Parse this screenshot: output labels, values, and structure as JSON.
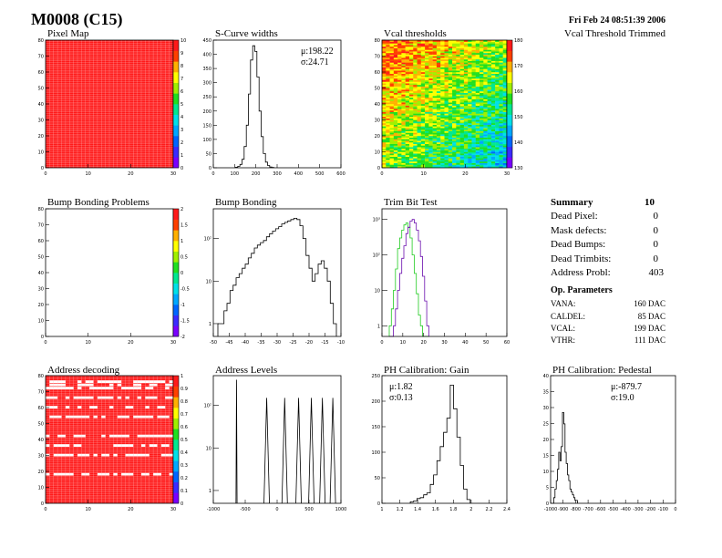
{
  "header": {
    "title": "M0008 (C15)",
    "timestamp": "Fri Feb 24 08:51:39 2006",
    "trimmed_label": "Vcal Threshold Trimmed"
  },
  "colors": {
    "red": "#ff1a1a",
    "grid": "#ffffff",
    "purple": "#6a0dad",
    "green": "#22cc22",
    "palette": [
      "#7a00ff",
      "#3b2bff",
      "#0066ff",
      "#00a8ff",
      "#00e0e8",
      "#00e890",
      "#20e020",
      "#a0f000",
      "#ffff00",
      "#ffb000",
      "#ff4000",
      "#ff1a1a"
    ]
  },
  "chart_data": [
    {
      "id": "pixel_map",
      "type": "heatmap",
      "title": "Pixel Map",
      "xlim": [
        0,
        32
      ],
      "ylim": [
        0,
        80
      ],
      "xticks": [
        "0",
        "10",
        "20",
        "30"
      ],
      "yticks": [
        "0",
        "10",
        "20",
        "30",
        "40",
        "50",
        "60",
        "70",
        "80"
      ],
      "zlim": [
        0,
        10
      ],
      "zticks": [
        "0",
        "1",
        "2",
        "3",
        "4",
        "5",
        "6",
        "7",
        "8",
        "9",
        "10"
      ],
      "fill_value": 10
    },
    {
      "id": "scurve_widths",
      "type": "bar",
      "title": "S-Curve widths",
      "xlim": [
        0,
        600
      ],
      "ylim": [
        0,
        450
      ],
      "xticks": [
        "0",
        "100",
        "200",
        "300",
        "400",
        "500",
        "600"
      ],
      "yticks": [
        "0",
        "50",
        "100",
        "150",
        "200",
        "250",
        "300",
        "350",
        "400",
        "450"
      ],
      "stats": [
        {
          "label": "μ:",
          "value": "198.22"
        },
        {
          "label": "σ:",
          "value": "24.71"
        }
      ],
      "x": [
        110,
        120,
        130,
        140,
        150,
        160,
        170,
        180,
        190,
        200,
        210,
        220,
        230,
        240,
        250,
        260,
        270,
        280
      ],
      "values": [
        2,
        5,
        12,
        30,
        75,
        150,
        260,
        380,
        430,
        410,
        320,
        200,
        110,
        50,
        20,
        8,
        3,
        1
      ]
    },
    {
      "id": "vcal_thresholds",
      "type": "heatmap",
      "title": "Vcal thresholds",
      "xlim": [
        0,
        32
      ],
      "ylim": [
        0,
        80
      ],
      "xticks": [
        "0",
        "10",
        "20",
        "30"
      ],
      "yticks": [
        "0",
        "10",
        "20",
        "30",
        "40",
        "50",
        "60",
        "70",
        "80"
      ],
      "zlim": [
        125,
        185
      ],
      "zticks": [
        "130",
        "140",
        "150",
        "160",
        "170",
        "180"
      ],
      "gradient": {
        "top_left": 178,
        "bottom_right": 145,
        "noise": 9
      }
    },
    {
      "id": "bump_bonding_problems",
      "type": "heatmap",
      "title": "Bump Bonding Problems",
      "xlim": [
        0,
        32
      ],
      "ylim": [
        0,
        80
      ],
      "xticks": [
        "0",
        "10",
        "20",
        "30"
      ],
      "yticks": [
        "0",
        "10",
        "20",
        "30",
        "40",
        "50",
        "60",
        "70",
        "80"
      ],
      "zlim": [
        -2,
        2
      ],
      "zticks": [
        "-2",
        "-1.5",
        "-1",
        "-0.5",
        "0",
        "0.5",
        "1",
        "1.5",
        "2"
      ],
      "empty": true
    },
    {
      "id": "bump_bonding",
      "type": "bar",
      "title": "Bump Bonding",
      "log_y": true,
      "xlim": [
        -50,
        -8
      ],
      "ylim": [
        0.5,
        500
      ],
      "xticks": [
        "-50",
        "-45",
        "-40",
        "-35",
        "-30",
        "-25",
        "-20",
        "-15",
        "-10"
      ],
      "yticks": [
        "1",
        "10",
        "10²"
      ],
      "x": [
        -48,
        -47,
        -46,
        -45,
        -44,
        -43,
        -42,
        -41,
        -40,
        -39,
        -38,
        -37,
        -36,
        -35,
        -34,
        -33,
        -32,
        -31,
        -30,
        -29,
        -28,
        -27,
        -26,
        -25,
        -24,
        -23,
        -22,
        -21,
        -20,
        -19,
        -18,
        -17,
        -16,
        -15,
        -14,
        -13,
        -12,
        -11,
        -10
      ],
      "values": [
        1,
        1,
        2,
        3,
        6,
        8,
        12,
        15,
        20,
        25,
        35,
        45,
        60,
        70,
        80,
        90,
        110,
        130,
        150,
        170,
        190,
        220,
        240,
        260,
        280,
        300,
        280,
        200,
        100,
        40,
        20,
        10,
        15,
        25,
        30,
        20,
        10,
        3,
        1
      ]
    },
    {
      "id": "trim_bit_test",
      "type": "bar",
      "title": "Trim Bit Test",
      "log_y": true,
      "xlim": [
        0,
        60
      ],
      "ylim": [
        0.5,
        2000
      ],
      "xticks": [
        "0",
        "10",
        "20",
        "30",
        "40",
        "50",
        "60"
      ],
      "yticks": [
        "1",
        "10",
        "10²",
        "10³"
      ],
      "x": [
        4,
        5,
        6,
        7,
        8,
        9,
        10,
        11,
        12,
        13,
        14,
        15,
        16,
        17,
        18,
        19,
        20,
        21,
        22
      ],
      "series": [
        {
          "color": "green",
          "values": [
            1,
            3,
            10,
            40,
            150,
            300,
            500,
            700,
            800,
            600,
            300,
            100,
            30,
            8,
            2,
            1,
            0,
            0,
            0
          ]
        },
        {
          "color": "purple",
          "values": [
            0,
            0,
            1,
            3,
            10,
            30,
            80,
            180,
            400,
            600,
            900,
            1000,
            800,
            500,
            250,
            90,
            25,
            5,
            1
          ]
        }
      ]
    },
    {
      "id": "address_decoding",
      "type": "heatmap",
      "title": "Address decoding",
      "xlim": [
        0,
        32
      ],
      "ylim": [
        0,
        80
      ],
      "xticks": [
        "0",
        "10",
        "20",
        "30"
      ],
      "yticks": [
        "0",
        "10",
        "20",
        "30",
        "40",
        "50",
        "60",
        "70",
        "80"
      ],
      "zlim": [
        0,
        1
      ],
      "zticks": [
        "0",
        "0.1",
        "0.2",
        "0.3",
        "0.4",
        "0.5",
        "0.6",
        "0.7",
        "0.8",
        "0.9",
        "1"
      ],
      "fill_value": 1,
      "missing_rows": [
        18,
        30,
        36,
        42,
        54,
        60,
        66,
        72,
        74,
        76
      ]
    },
    {
      "id": "address_levels",
      "type": "line",
      "title": "Address Levels",
      "log_y": true,
      "xlim": [
        -1200,
        1000
      ],
      "ylim": [
        0.5,
        500
      ],
      "xticks": [
        "-1000",
        "-500",
        "0",
        "500",
        "1000"
      ],
      "yticks": [
        "1",
        "10",
        "10²"
      ],
      "peaks": [
        {
          "x": -800,
          "height": 400
        },
        {
          "x": -280,
          "height": 150
        },
        {
          "x": 30,
          "height": 150
        },
        {
          "x": 270,
          "height": 150
        },
        {
          "x": 490,
          "height": 150
        },
        {
          "x": 680,
          "height": 150
        },
        {
          "x": 860,
          "height": 150
        }
      ]
    },
    {
      "id": "ph_gain",
      "type": "bar",
      "title": "PH Calibration: Gain",
      "xlim": [
        1,
        2.5
      ],
      "ylim": [
        0,
        270
      ],
      "xticks": [
        "1",
        "1.2",
        "1.4",
        "1.6",
        "1.8",
        "2",
        "2.2",
        "2.4"
      ],
      "yticks": [
        "0",
        "50",
        "100",
        "150",
        "200",
        "250"
      ],
      "stats": [
        {
          "label": "μ:",
          "value": "1.82"
        },
        {
          "label": "σ:",
          "value": "0.13"
        }
      ],
      "x": [
        1.36,
        1.4,
        1.44,
        1.48,
        1.52,
        1.56,
        1.6,
        1.64,
        1.68,
        1.72,
        1.76,
        1.8,
        1.84,
        1.88,
        1.92,
        1.96,
        2.0,
        2.04
      ],
      "values": [
        3,
        5,
        10,
        12,
        18,
        22,
        40,
        60,
        90,
        120,
        150,
        180,
        250,
        200,
        140,
        80,
        30,
        8
      ]
    },
    {
      "id": "ph_pedestal",
      "type": "bar",
      "title": "PH Calibration: Pedestal",
      "xlim": [
        -1000,
        0
      ],
      "ylim": [
        0,
        45
      ],
      "xticks": [
        "-1000",
        "-900",
        "-800",
        "-700",
        "-600",
        "-500",
        "-400",
        "-300",
        "-200",
        "-100",
        "0"
      ],
      "yticks": [
        "0",
        "5",
        "10",
        "15",
        "20",
        "25",
        "30",
        "35",
        "40"
      ],
      "stats": [
        {
          "label": "μ:",
          "value": "-879.7"
        },
        {
          "label": "σ:",
          "value": "19.0"
        }
      ],
      "x": [
        -970,
        -960,
        -950,
        -940,
        -930,
        -920,
        -910,
        -900,
        -890,
        -880,
        -870,
        -860,
        -850,
        -840,
        -830,
        -820,
        -810,
        -800,
        -790
      ],
      "values": [
        2,
        5,
        8,
        12,
        18,
        15,
        20,
        32,
        28,
        18,
        14,
        10,
        8,
        5,
        4,
        3,
        2,
        1,
        1
      ]
    }
  ],
  "summary": {
    "title": "Summary",
    "count": "10",
    "rows": [
      {
        "label": "Dead Pixel:",
        "value": "0"
      },
      {
        "label": "Mask defects:",
        "value": "0"
      },
      {
        "label": "Dead Bumps:",
        "value": "0"
      },
      {
        "label": "Dead Trimbits:",
        "value": "0"
      },
      {
        "label": "Address Probl:",
        "value": "403"
      }
    ]
  },
  "op_parameters": {
    "title": "Op. Parameters",
    "rows": [
      {
        "label": "VANA:",
        "value": "160 DAC"
      },
      {
        "label": "CALDEL:",
        "value": "85 DAC"
      },
      {
        "label": "VCAL:",
        "value": "199 DAC"
      },
      {
        "label": "VTHR:",
        "value": "111 DAC"
      }
    ]
  }
}
